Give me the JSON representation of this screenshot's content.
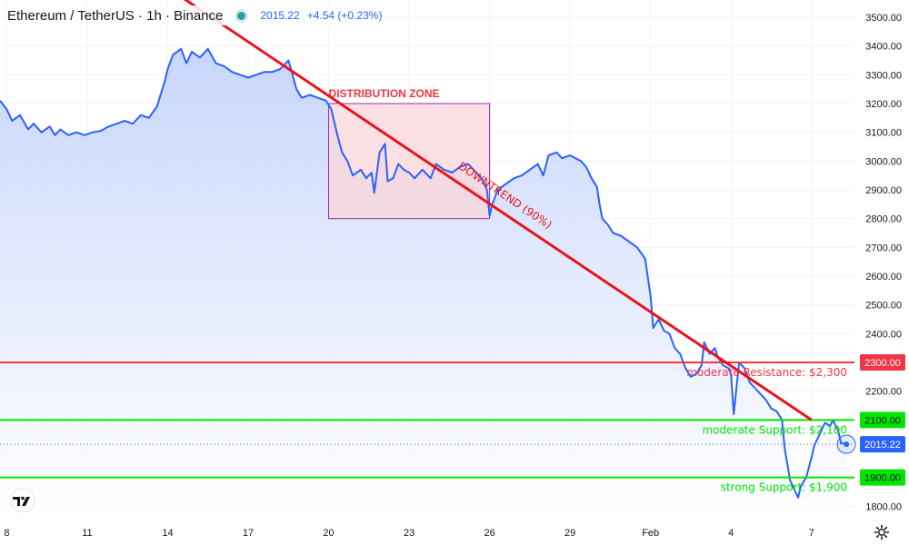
{
  "header": {
    "symbol": "Ethereum / TetherUS · 1h · Binance",
    "price": "2015.22",
    "change": "+4.54 (+0.23%)"
  },
  "colors": {
    "line": "#2962ff",
    "area_top": "#c7d5fb",
    "resistance": "#f23645",
    "support": "#00e600",
    "trend": "#e8141c",
    "zone_fill": "#fbd5d9",
    "zone_border": "#9c27b0"
  },
  "icons": {
    "logo": "tradingview-logo-icon",
    "settings": "gear-icon"
  },
  "chart_data": {
    "type": "area",
    "y_ticks": [
      "3500.00",
      "3400.00",
      "3300.00",
      "3200.00",
      "3100.00",
      "3000.00",
      "2900.00",
      "2800.00",
      "2700.00",
      "2600.00",
      "2500.00",
      "2400.00",
      "2300.00",
      "2200.00",
      "2100.00",
      "2000.00",
      "1900.00",
      "1800.00"
    ],
    "y_tick_values": [
      3500,
      3400,
      3300,
      3200,
      3100,
      3000,
      2900,
      2800,
      2700,
      2600,
      2500,
      2400,
      2300,
      2200,
      2100,
      2000,
      1900,
      1800
    ],
    "ylim": [
      1760,
      3560
    ],
    "x_ticks": [
      {
        "label": "8",
        "day": 8
      },
      {
        "label": "11",
        "day": 11
      },
      {
        "label": "14",
        "day": 14
      },
      {
        "label": "17",
        "day": 17
      },
      {
        "label": "20",
        "day": 20
      },
      {
        "label": "23",
        "day": 23
      },
      {
        "label": "26",
        "day": 26
      },
      {
        "label": "29",
        "day": 29
      },
      {
        "label": "Feb",
        "day": 32
      },
      {
        "label": "4",
        "day": 35
      },
      {
        "label": "7",
        "day": 38
      }
    ],
    "xlim": [
      7.75,
      39.6
    ],
    "series": [
      {
        "points": [
          [
            7.75,
            3210
          ],
          [
            8.0,
            3180
          ],
          [
            8.2,
            3140
          ],
          [
            8.5,
            3160
          ],
          [
            8.8,
            3110
          ],
          [
            9.0,
            3130
          ],
          [
            9.3,
            3100
          ],
          [
            9.6,
            3120
          ],
          [
            9.8,
            3090
          ],
          [
            10.0,
            3110
          ],
          [
            10.3,
            3090
          ],
          [
            10.6,
            3100
          ],
          [
            10.9,
            3090
          ],
          [
            11.2,
            3100
          ],
          [
            11.5,
            3105
          ],
          [
            11.8,
            3120
          ],
          [
            12.1,
            3130
          ],
          [
            12.4,
            3140
          ],
          [
            12.7,
            3130
          ],
          [
            13.0,
            3160
          ],
          [
            13.3,
            3150
          ],
          [
            13.6,
            3190
          ],
          [
            13.9,
            3280
          ],
          [
            14.0,
            3320
          ],
          [
            14.2,
            3370
          ],
          [
            14.5,
            3390
          ],
          [
            14.7,
            3340
          ],
          [
            14.9,
            3380
          ],
          [
            15.2,
            3360
          ],
          [
            15.5,
            3390
          ],
          [
            15.8,
            3340
          ],
          [
            16.1,
            3330
          ],
          [
            16.4,
            3310
          ],
          [
            16.7,
            3300
          ],
          [
            17.0,
            3290
          ],
          [
            17.3,
            3300
          ],
          [
            17.6,
            3310
          ],
          [
            17.9,
            3310
          ],
          [
            18.2,
            3320
          ],
          [
            18.5,
            3350
          ],
          [
            18.6,
            3320
          ],
          [
            18.8,
            3250
          ],
          [
            19.0,
            3220
          ],
          [
            19.3,
            3230
          ],
          [
            19.6,
            3220
          ],
          [
            19.9,
            3210
          ],
          [
            20.1,
            3180
          ],
          [
            20.3,
            3100
          ],
          [
            20.5,
            3030
          ],
          [
            20.7,
            3000
          ],
          [
            20.9,
            2950
          ],
          [
            21.2,
            2970
          ],
          [
            21.4,
            2940
          ],
          [
            21.6,
            2960
          ],
          [
            21.7,
            2890
          ],
          [
            21.9,
            3030
          ],
          [
            22.1,
            3060
          ],
          [
            22.2,
            2930
          ],
          [
            22.4,
            2940
          ],
          [
            22.6,
            2990
          ],
          [
            22.8,
            2970
          ],
          [
            23.0,
            2960
          ],
          [
            23.2,
            2940
          ],
          [
            23.5,
            2970
          ],
          [
            23.8,
            2940
          ],
          [
            24.0,
            2990
          ],
          [
            24.3,
            2970
          ],
          [
            24.6,
            2960
          ],
          [
            24.9,
            2980
          ],
          [
            25.2,
            2990
          ],
          [
            25.5,
            2960
          ],
          [
            25.7,
            2940
          ],
          [
            25.9,
            2900
          ],
          [
            26.0,
            2810
          ],
          [
            26.1,
            2850
          ],
          [
            26.3,
            2900
          ],
          [
            26.6,
            2920
          ],
          [
            26.9,
            2940
          ],
          [
            27.2,
            2950
          ],
          [
            27.5,
            2970
          ],
          [
            27.8,
            2990
          ],
          [
            28.0,
            2950
          ],
          [
            28.2,
            3020
          ],
          [
            28.5,
            3030
          ],
          [
            28.7,
            3010
          ],
          [
            29.0,
            3020
          ],
          [
            29.2,
            3010
          ],
          [
            29.4,
            3000
          ],
          [
            29.6,
            2980
          ],
          [
            29.8,
            2940
          ],
          [
            30.0,
            2910
          ],
          [
            30.1,
            2850
          ],
          [
            30.2,
            2800
          ],
          [
            30.4,
            2780
          ],
          [
            30.6,
            2750
          ],
          [
            30.9,
            2740
          ],
          [
            31.2,
            2720
          ],
          [
            31.5,
            2700
          ],
          [
            31.8,
            2660
          ],
          [
            32.0,
            2530
          ],
          [
            32.1,
            2420
          ],
          [
            32.3,
            2450
          ],
          [
            32.5,
            2410
          ],
          [
            32.7,
            2400
          ],
          [
            32.9,
            2350
          ],
          [
            33.1,
            2330
          ],
          [
            33.3,
            2280
          ],
          [
            33.5,
            2250
          ],
          [
            33.7,
            2260
          ],
          [
            33.9,
            2290
          ],
          [
            34.0,
            2370
          ],
          [
            34.2,
            2330
          ],
          [
            34.4,
            2350
          ],
          [
            34.5,
            2320
          ],
          [
            34.7,
            2290
          ],
          [
            34.9,
            2280
          ],
          [
            35.0,
            2260
          ],
          [
            35.1,
            2120
          ],
          [
            35.3,
            2300
          ],
          [
            35.5,
            2280
          ],
          [
            35.7,
            2230
          ],
          [
            35.9,
            2210
          ],
          [
            36.1,
            2190
          ],
          [
            36.3,
            2170
          ],
          [
            36.5,
            2140
          ],
          [
            36.7,
            2130
          ],
          [
            36.9,
            2100
          ],
          [
            37.0,
            2000
          ],
          [
            37.2,
            1890
          ],
          [
            37.4,
            1850
          ],
          [
            37.5,
            1830
          ],
          [
            37.6,
            1870
          ],
          [
            37.8,
            1900
          ],
          [
            38.0,
            1970
          ],
          [
            38.1,
            2010
          ],
          [
            38.3,
            2050
          ],
          [
            38.5,
            2090
          ],
          [
            38.7,
            2080
          ],
          [
            38.8,
            2100
          ],
          [
            39.0,
            2060
          ],
          [
            39.1,
            2020
          ],
          [
            39.3,
            2015.22
          ]
        ]
      }
    ],
    "last_point": {
      "day": 39.3,
      "value": 2015.22,
      "label": "2015.22"
    },
    "horizontal_levels": [
      {
        "value": 2300,
        "tag": "2300.00",
        "label": "moderate Resistance: $2,300",
        "kind": "resistance"
      },
      {
        "value": 2100,
        "tag": "2100.00",
        "label": "moderate Support: $2,100",
        "kind": "support"
      },
      {
        "value": 1900,
        "tag": "1900.00",
        "label": "strong Support: $1,900",
        "kind": "support"
      }
    ],
    "trendline": {
      "from": {
        "day": 14.2,
        "value": 3590
      },
      "to": {
        "day": 38.0,
        "value": 2100
      },
      "label": "DOWNTREND (90%)",
      "label_at": {
        "day": 26.5,
        "value": 2870
      }
    },
    "zone": {
      "day_start": 20.0,
      "day_end": 26.0,
      "value_top": 3200,
      "value_bottom": 2800,
      "label": "DISTRIBUTION ZONE"
    }
  }
}
